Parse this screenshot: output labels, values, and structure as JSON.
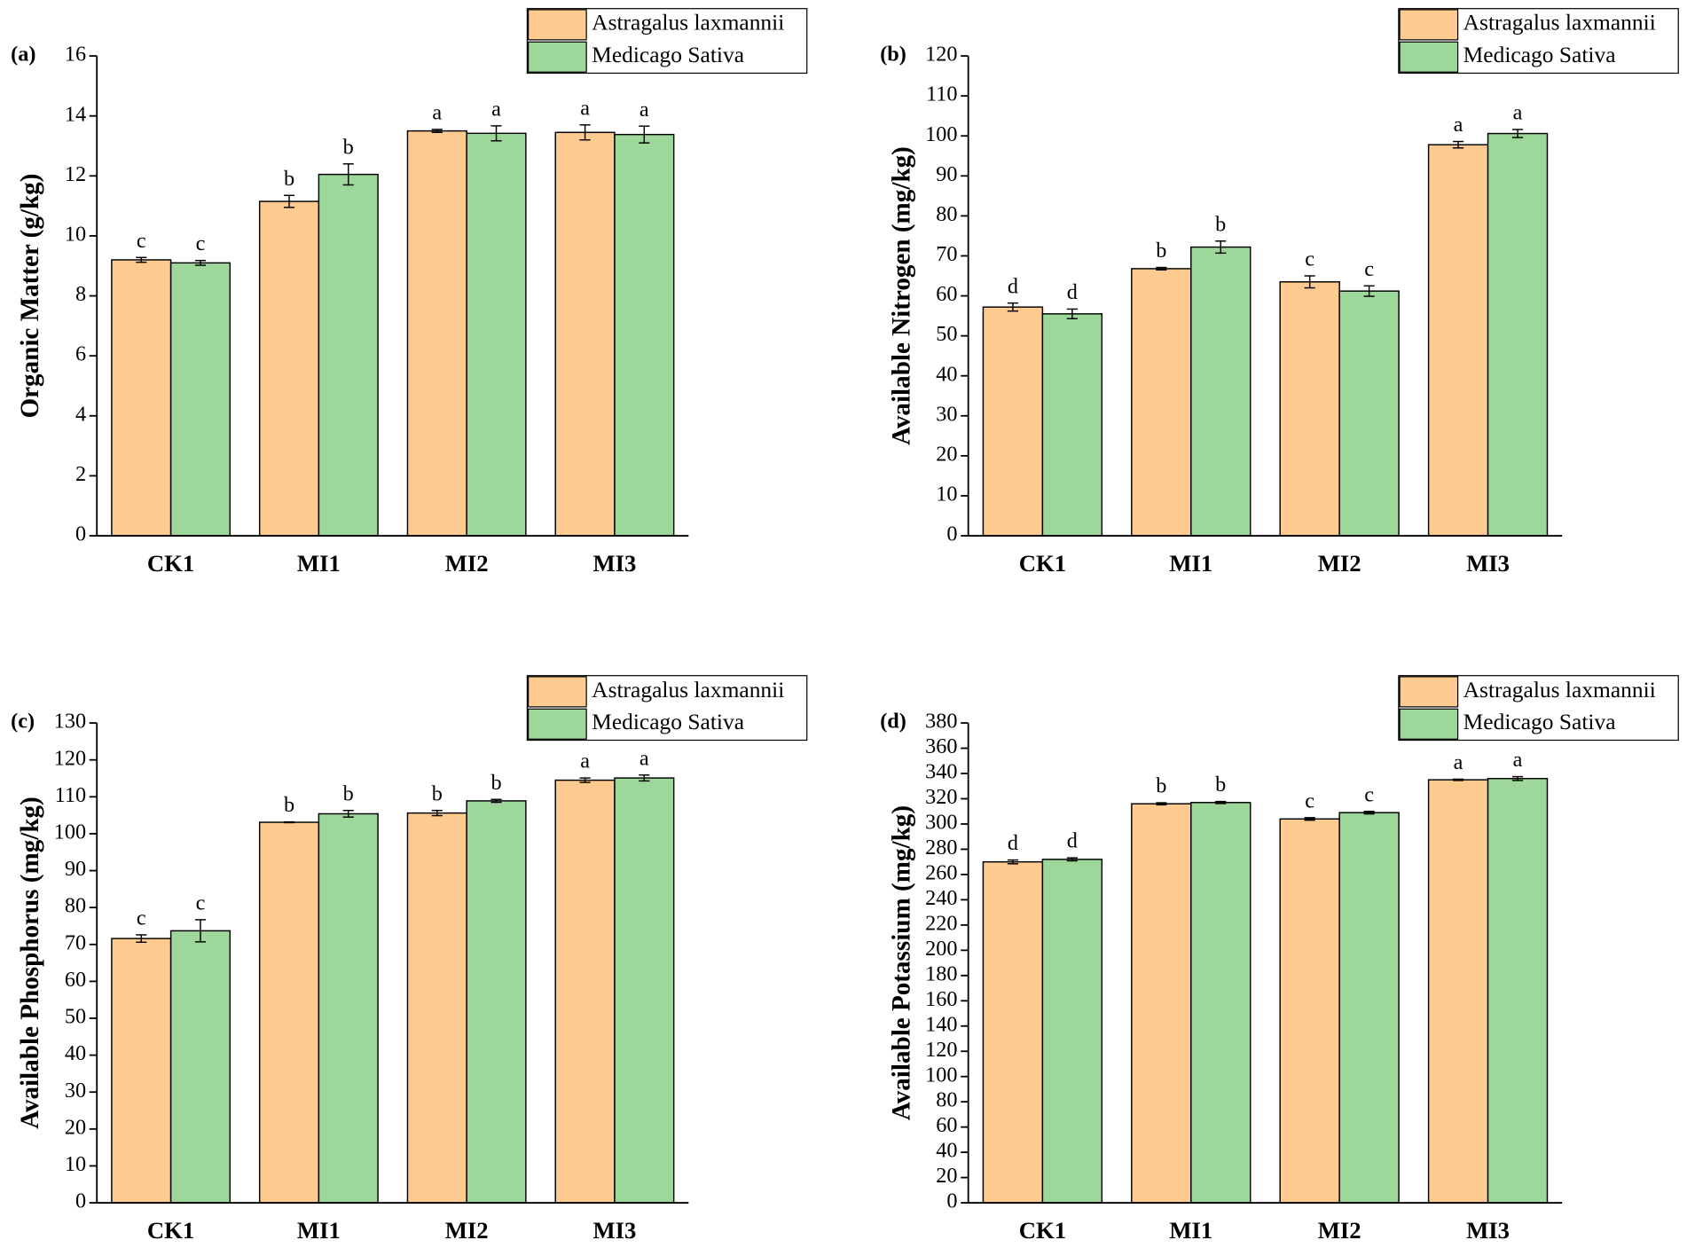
{
  "chart_data": [
    {
      "type": "bar",
      "panel_label": "(a)",
      "y_label": "Organic Matter (g/kg)",
      "categories": [
        "CK1",
        "MI1",
        "MI2",
        "MI3"
      ],
      "series": [
        {
          "name": "Astragalus laxmannii",
          "color": "#fdcb8f",
          "values": [
            9.2,
            11.15,
            13.5,
            13.45
          ],
          "errors": [
            0.08,
            0.2,
            0.05,
            0.25
          ],
          "letters": [
            "c",
            "b",
            "a",
            "a"
          ]
        },
        {
          "name": "Medicago Sativa",
          "color": "#9dd89a",
          "values": [
            9.1,
            12.05,
            13.42,
            13.38
          ],
          "errors": [
            0.08,
            0.35,
            0.25,
            0.28
          ],
          "letters": [
            "c",
            "b",
            "a",
            "a"
          ]
        }
      ],
      "ylim": [
        0,
        16
      ],
      "yticks": [
        0,
        2,
        4,
        6,
        8,
        10,
        12,
        14,
        16
      ]
    },
    {
      "type": "bar",
      "panel_label": "(b)",
      "y_label": "Available Nitrogen (mg/kg)",
      "categories": [
        "CK1",
        "MI1",
        "MI2",
        "MI3"
      ],
      "series": [
        {
          "name": "Astragalus laxmannii",
          "color": "#fdcb8f",
          "values": [
            57.2,
            66.8,
            63.5,
            97.8
          ],
          "errors": [
            1,
            0.3,
            1.5,
            0.8
          ],
          "letters": [
            "d",
            "b",
            "c",
            "a"
          ]
        },
        {
          "name": "Medicago Sativa",
          "color": "#9dd89a",
          "values": [
            55.5,
            72.2,
            61.2,
            100.6
          ],
          "errors": [
            1.2,
            1.5,
            1.3,
            1.0
          ],
          "letters": [
            "d",
            "b",
            "c",
            "a"
          ]
        }
      ],
      "ylim": [
        0,
        120
      ],
      "yticks": [
        0,
        10,
        20,
        30,
        40,
        50,
        60,
        70,
        80,
        90,
        100,
        110,
        120
      ]
    },
    {
      "type": "bar",
      "panel_label": "(c)",
      "y_label": "Available Phosphorus (mg/kg)",
      "categories": [
        "CK1",
        "MI1",
        "MI2",
        "MI3"
      ],
      "series": [
        {
          "name": "Astragalus laxmannii",
          "color": "#fdcb8f",
          "values": [
            71.6,
            103.1,
            105.6,
            114.5
          ],
          "errors": [
            1,
            0.1,
            0.7,
            0.6
          ],
          "letters": [
            "c",
            "b",
            "b",
            "a"
          ]
        },
        {
          "name": "Medicago Sativa",
          "color": "#9dd89a",
          "values": [
            73.7,
            105.4,
            108.9,
            115.1
          ],
          "errors": [
            3,
            0.9,
            0.4,
            0.8
          ],
          "letters": [
            "c",
            "b",
            "b",
            "a"
          ]
        }
      ],
      "ylim": [
        0,
        130
      ],
      "yticks": [
        0,
        10,
        20,
        30,
        40,
        50,
        60,
        70,
        80,
        90,
        100,
        110,
        120,
        130
      ]
    },
    {
      "type": "bar",
      "panel_label": "(d)",
      "y_label": "Available Potassium (mg/kg)",
      "categories": [
        "CK1",
        "MI1",
        "MI2",
        "MI3"
      ],
      "series": [
        {
          "name": "Astragalus laxmannii",
          "color": "#fdcb8f",
          "values": [
            270,
            316,
            304,
            335
          ],
          "errors": [
            1.5,
            0.8,
            1,
            0.5
          ],
          "letters": [
            "d",
            "b",
            "c",
            "a"
          ]
        },
        {
          "name": "Medicago Sativa",
          "color": "#9dd89a",
          "values": [
            272,
            317,
            309,
            336
          ],
          "errors": [
            1.2,
            0.8,
            1,
            1.5
          ],
          "letters": [
            "d",
            "b",
            "c",
            "a"
          ]
        }
      ],
      "ylim": [
        0,
        380
      ],
      "yticks": [
        0,
        20,
        40,
        60,
        80,
        100,
        120,
        140,
        160,
        180,
        200,
        220,
        240,
        260,
        280,
        300,
        320,
        340,
        360,
        380
      ]
    }
  ]
}
